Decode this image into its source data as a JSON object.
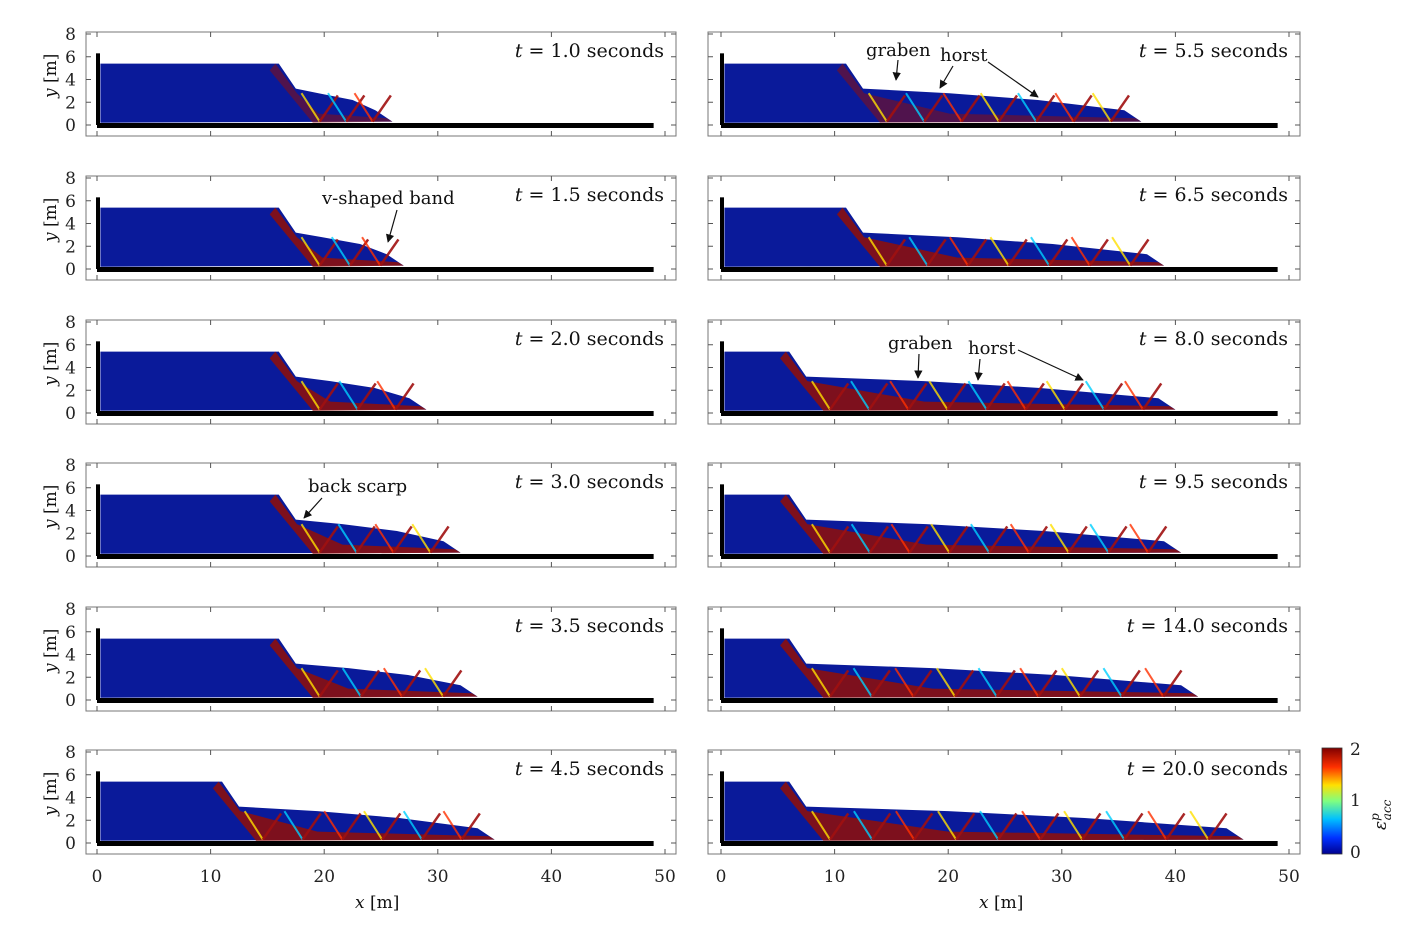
{
  "x_axis": {
    "label_var": "x",
    "label_unit": " [m]",
    "ticks": [
      "0",
      "10",
      "20",
      "30",
      "40",
      "50"
    ],
    "range": [
      0,
      50
    ]
  },
  "y_axis": {
    "label_var": "y",
    "label_unit": " [m]",
    "ticks": [
      "0",
      "2",
      "4",
      "6",
      "8"
    ],
    "range": [
      0,
      8
    ]
  },
  "time_var": "t",
  "time_unit": " seconds",
  "panels": [
    {
      "time": "1.0",
      "front": 26,
      "scarp": 16
    },
    {
      "time": "5.5",
      "front": 37,
      "scarp": 11
    },
    {
      "time": "1.5",
      "front": 27,
      "scarp": 16
    },
    {
      "time": "6.5",
      "front": 39,
      "scarp": 11
    },
    {
      "time": "2.0",
      "front": 29,
      "scarp": 16
    },
    {
      "time": "8.0",
      "front": 40,
      "scarp": 6
    },
    {
      "time": "3.0",
      "front": 32,
      "scarp": 16
    },
    {
      "time": "9.5",
      "front": 40.5,
      "scarp": 6
    },
    {
      "time": "3.5",
      "front": 33.5,
      "scarp": 16
    },
    {
      "time": "14.0",
      "front": 42,
      "scarp": 6
    },
    {
      "time": "4.5",
      "front": 35,
      "scarp": 11
    },
    {
      "time": "20.0",
      "front": 46,
      "scarp": 6
    }
  ],
  "annotations": {
    "graben": "graben",
    "horst": "horst",
    "v_shaped_band": "v-shaped band",
    "back_scarp": "back scarp"
  },
  "colorbar": {
    "label": "ε",
    "label_sup": "p",
    "label_sub": "acc",
    "ticks": [
      "0",
      "1",
      "2"
    ],
    "colors": [
      "#00008f",
      "#0050ff",
      "#00e0ff",
      "#80ff80",
      "#ffe000",
      "#ff3000",
      "#800000"
    ]
  }
}
